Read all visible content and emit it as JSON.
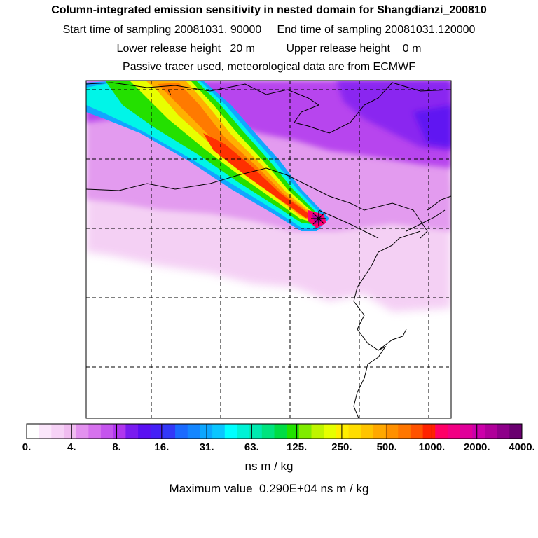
{
  "title": {
    "line1": "Column-integrated emission sensitivity in nested domain for Shangdianzi_200810",
    "line2": "Start time of sampling 20081031. 90000     End time of sampling 20081031.120000",
    "line3": "Lower release height   20 m          Upper release height    0 m",
    "line4": "Passive tracer used, meteorological data are from ECMWF"
  },
  "chart_data": {
    "type": "heatmap",
    "title": "Column-integrated emission sensitivity in nested domain for Shangdianzi_200810",
    "colorbar": {
      "units": "ns m / kg",
      "scale": "log",
      "tick_labels": [
        "0.",
        "4.",
        "8.",
        "16.",
        "31.",
        "63.",
        "125.",
        "250.",
        "500.",
        "1000.",
        "2000.",
        "4000."
      ],
      "colors": [
        "#ffffff",
        "#fbe6fb",
        "#f6d2f6",
        "#f0bcf0",
        "#e391ef",
        "#d671ee",
        "#c555ee",
        "#b036ee",
        "#7a1cf0",
        "#5a10f2",
        "#4420f6",
        "#3238f8",
        "#1a6aff",
        "#1486ff",
        "#0ca6ff",
        "#0ac6ff",
        "#00ffff",
        "#00f2d6",
        "#00eab0",
        "#00e47e",
        "#00dd44",
        "#22e200",
        "#80ec00",
        "#bff500",
        "#e6ff00",
        "#ffee00",
        "#ffdd00",
        "#ffc400",
        "#ffa800",
        "#ff9000",
        "#ff7600",
        "#ff5200",
        "#ff2200",
        "#ff0066",
        "#f20083",
        "#e0009a",
        "#cc00aa",
        "#b0009a",
        "#8e008a",
        "#6a0070"
      ]
    },
    "maximum_value": {
      "value": 2900,
      "text": "Maximum value  0.290E+04 ns m / kg"
    },
    "receptor": "Shangdianzi",
    "gridlines": true
  }
}
